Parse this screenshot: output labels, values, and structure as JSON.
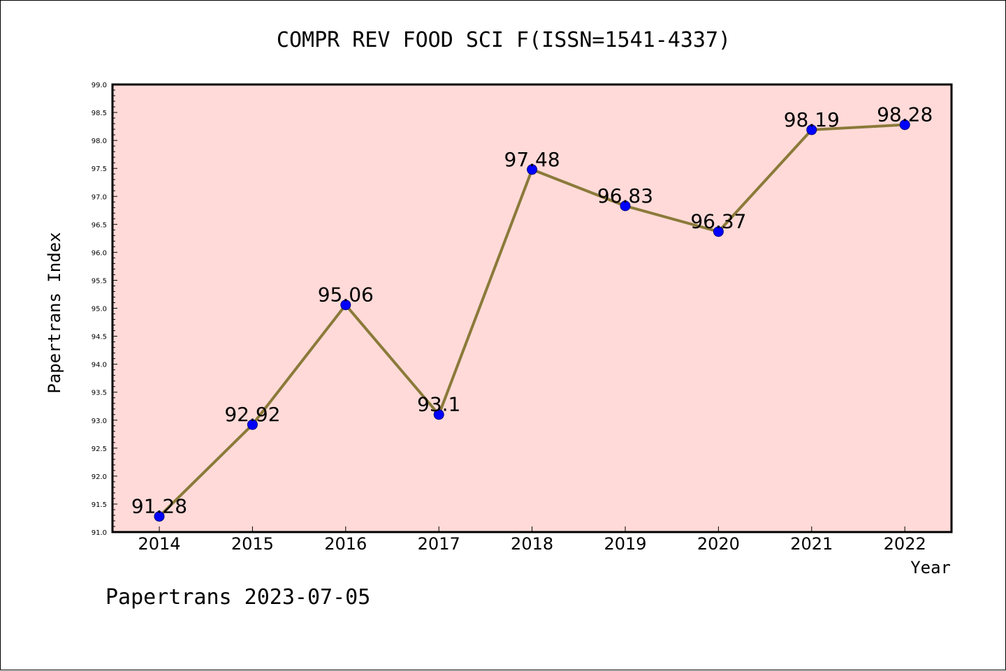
{
  "chart_data": {
    "type": "line",
    "title": "COMPR REV FOOD SCI F(ISSN=1541-4337)",
    "xlabel": "Year",
    "ylabel": "Papertrans Index",
    "categories": [
      "2014",
      "2015",
      "2016",
      "2017",
      "2018",
      "2019",
      "2020",
      "2021",
      "2022"
    ],
    "values": [
      91.28,
      92.92,
      95.06,
      93.1,
      97.48,
      96.83,
      96.37,
      98.19,
      98.28
    ],
    "data_labels": [
      "91.28",
      "92.92",
      "95.06",
      "93.1",
      "97.48",
      "96.83",
      "96.37",
      "98.19",
      "98.28"
    ],
    "ylim": [
      91.0,
      99.0
    ],
    "ytick_step": 0.5,
    "ytick_labels": [
      "91.0",
      "91.5",
      "92.0",
      "92.5",
      "93.0",
      "93.5",
      "94.0",
      "94.5",
      "95.0",
      "95.5",
      "96.0",
      "96.5",
      "97.0",
      "97.5",
      "98.0",
      "98.5",
      "99.0"
    ],
    "grid": false,
    "legend": "none",
    "colors": {
      "plot_background": "#ffdad8",
      "line": "#8b7a3a",
      "marker_fill": "#0000ff",
      "marker_edge": "#000080"
    }
  },
  "footer": {
    "text": "Papertrans 2023-07-05"
  }
}
